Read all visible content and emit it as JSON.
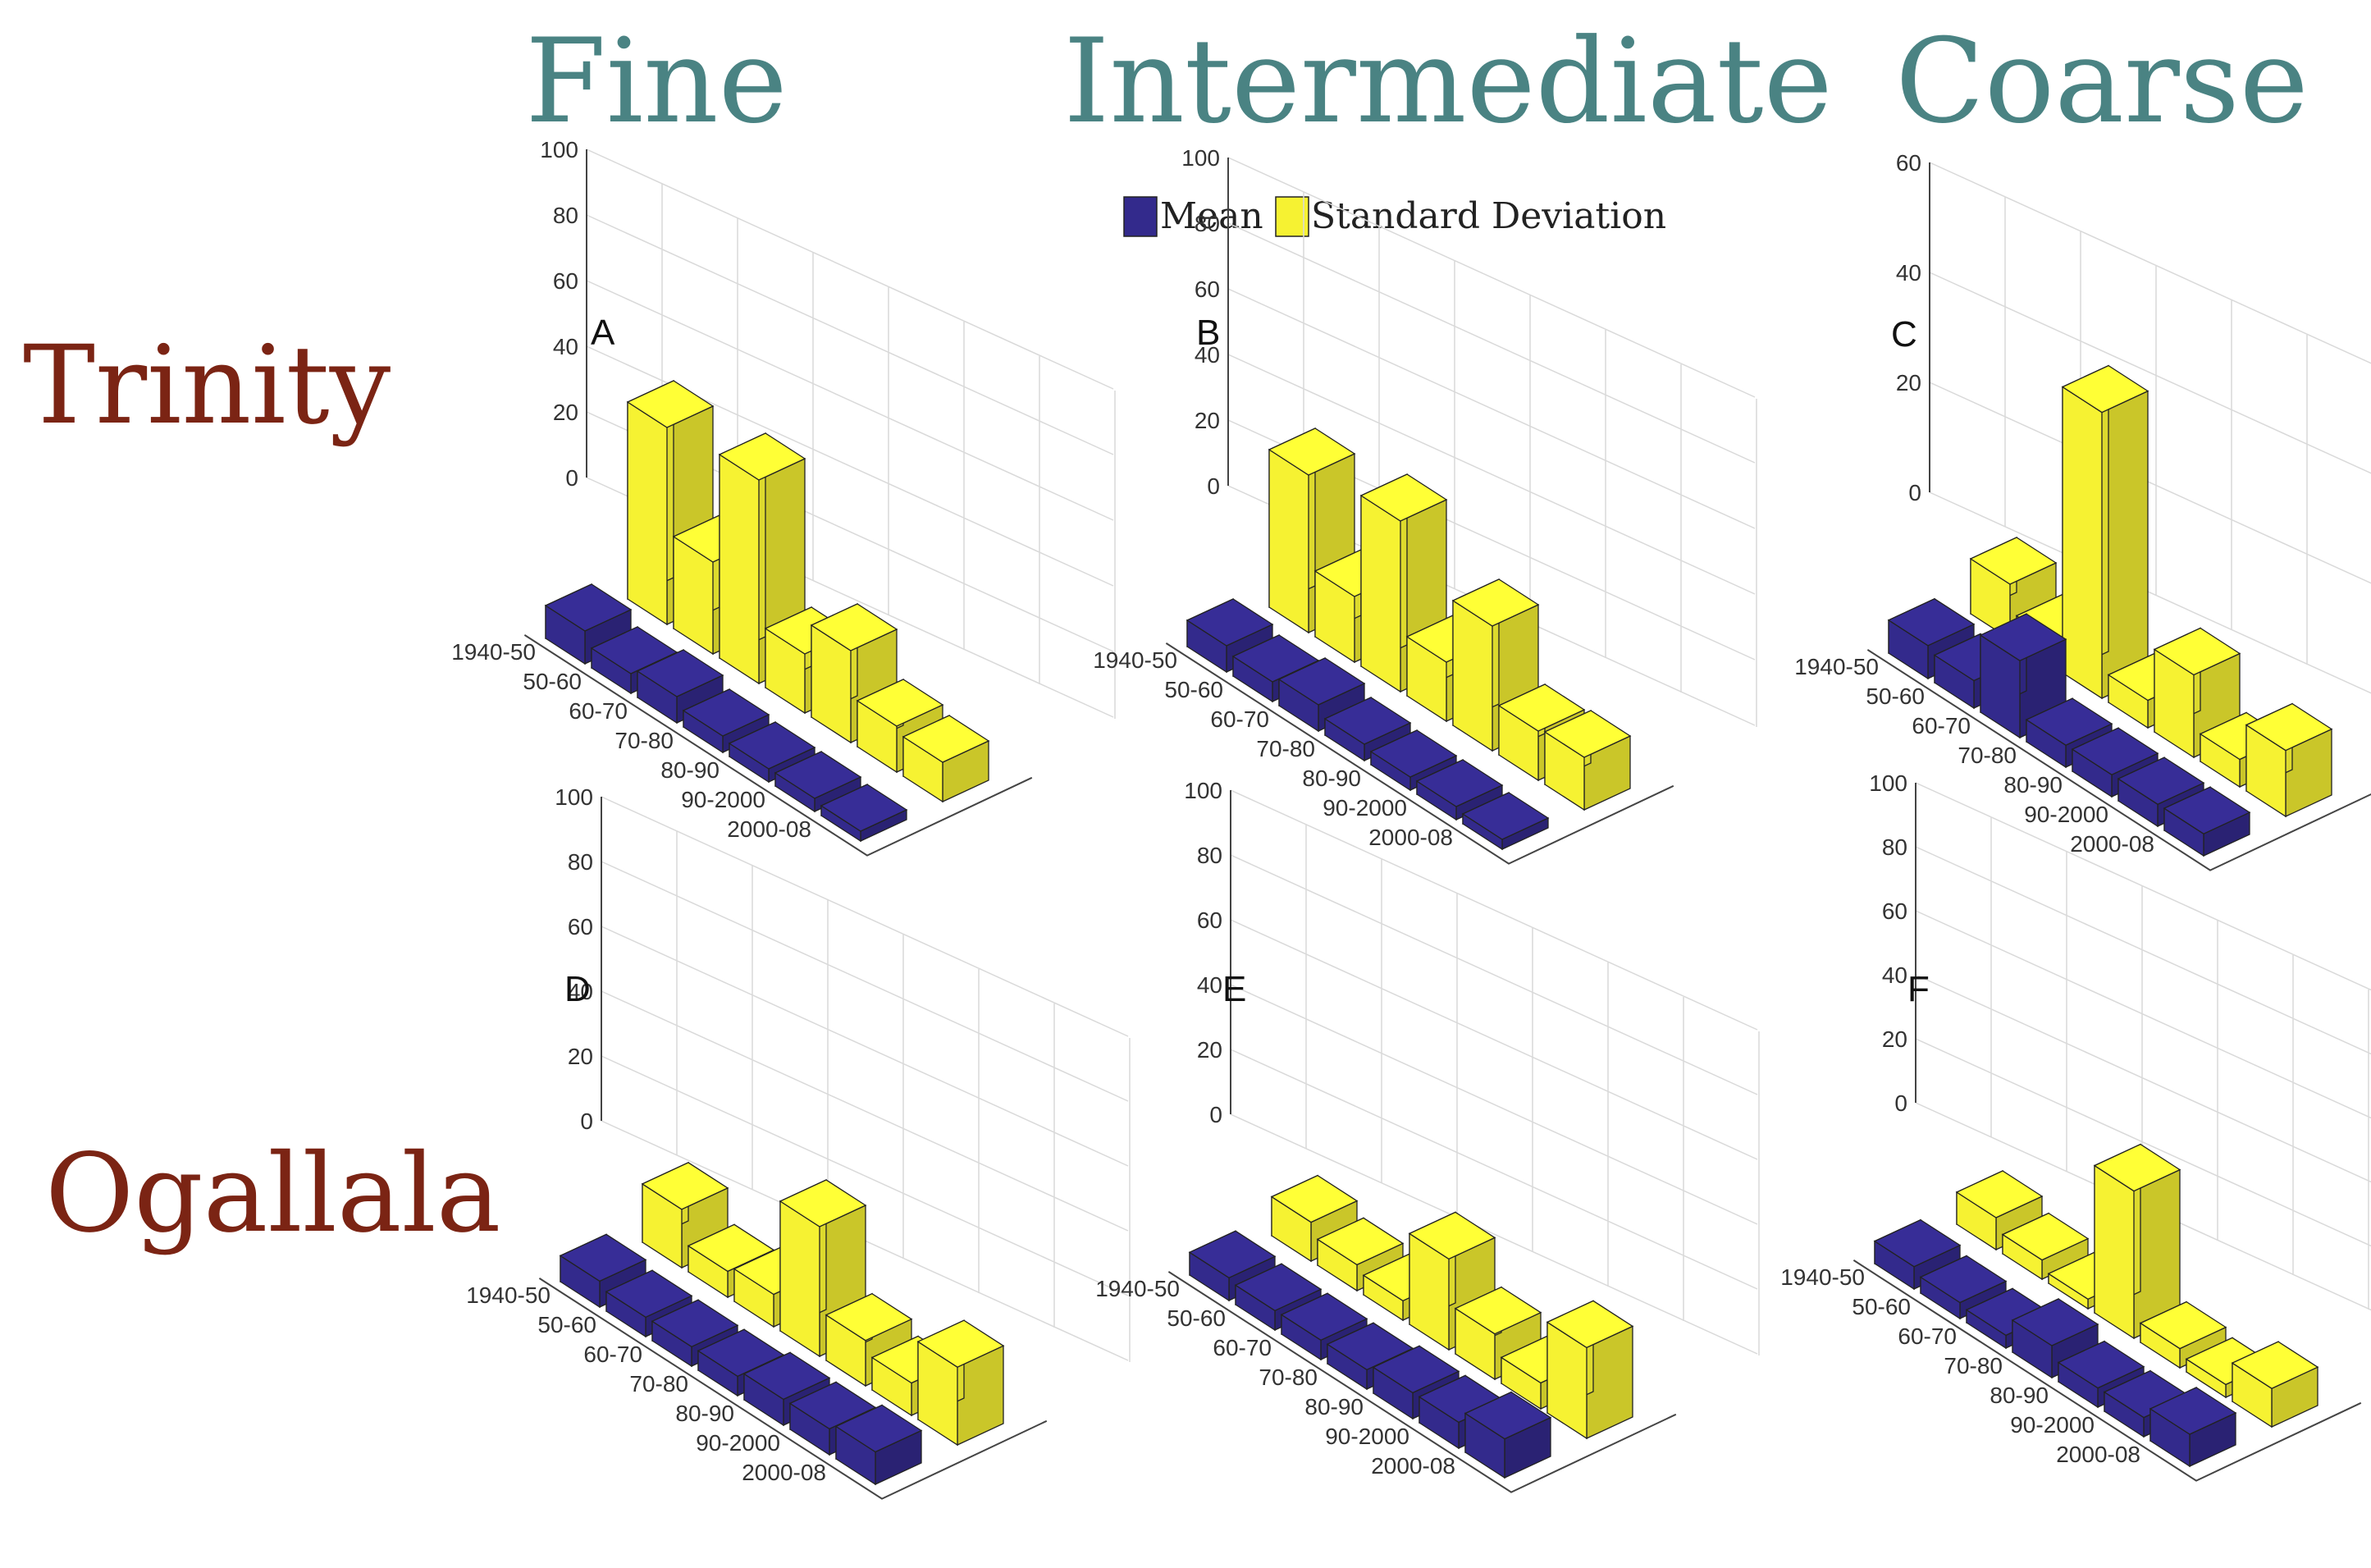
{
  "columns": [
    "Fine",
    "Intermediate",
    "Coarse"
  ],
  "rows": [
    "Trinity",
    "Ogallala"
  ],
  "legend": {
    "mean_label": "Mean",
    "sd_label": "Standard Deviation"
  },
  "colors": {
    "mean": "#332a8c",
    "sd": "#f6f232",
    "column_title": "#4a8383",
    "row_title": "#7b2414"
  },
  "chart_data": [
    {
      "type": "bar3d",
      "panel": "A",
      "categories": [
        "1940-50",
        "50-60",
        "60-70",
        "70-80",
        "80-90",
        "90-2000",
        "2000-08"
      ],
      "series": [
        {
          "name": "Mean",
          "values": [
            10,
            6,
            8,
            5,
            4,
            4,
            3
          ]
        },
        {
          "name": "Standard Deviation",
          "values": [
            60,
            28,
            62,
            18,
            28,
            14,
            12
          ]
        }
      ],
      "ylim": [
        0,
        100
      ],
      "yticks": [
        0,
        20,
        40,
        60,
        80,
        100
      ]
    },
    {
      "type": "bar3d",
      "panel": "B",
      "categories": [
        "1940-50",
        "50-60",
        "60-70",
        "70-80",
        "80-90",
        "90-2000",
        "2000-08"
      ],
      "series": [
        {
          "name": "Mean",
          "values": [
            8,
            6,
            8,
            5,
            4,
            4,
            3
          ]
        },
        {
          "name": "Standard Deviation",
          "values": [
            48,
            20,
            52,
            18,
            38,
            15,
            16
          ]
        }
      ],
      "ylim": [
        0,
        100
      ],
      "yticks": [
        0,
        20,
        40,
        60,
        80,
        100
      ]
    },
    {
      "type": "bar3d",
      "panel": "C",
      "categories": [
        "1940-50",
        "50-60",
        "60-70",
        "70-80",
        "80-90",
        "90-2000",
        "2000-08"
      ],
      "series": [
        {
          "name": "Mean",
          "values": [
            6,
            5,
            14,
            4,
            4,
            4,
            4
          ]
        },
        {
          "name": "Standard Deviation",
          "values": [
            10,
            5,
            52,
            5,
            15,
            5,
            12
          ]
        }
      ],
      "ylim": [
        0,
        60
      ],
      "yticks": [
        0,
        20,
        40,
        60
      ]
    },
    {
      "type": "bar3d",
      "panel": "D",
      "categories": [
        "1940-50",
        "50-60",
        "60-70",
        "70-80",
        "80-90",
        "90-2000",
        "2000-08"
      ],
      "series": [
        {
          "name": "Mean",
          "values": [
            8,
            6,
            6,
            6,
            8,
            8,
            10
          ]
        },
        {
          "name": "Standard Deviation",
          "values": [
            18,
            8,
            10,
            40,
            14,
            10,
            24
          ]
        }
      ],
      "ylim": [
        0,
        100
      ],
      "yticks": [
        0,
        20,
        40,
        60,
        80,
        100
      ]
    },
    {
      "type": "bar3d",
      "panel": "E",
      "categories": [
        "1940-50",
        "50-60",
        "60-70",
        "70-80",
        "80-90",
        "90-2000",
        "2000-08"
      ],
      "series": [
        {
          "name": "Mean",
          "values": [
            7,
            6,
            6,
            6,
            8,
            8,
            12
          ]
        },
        {
          "name": "Standard Deviation",
          "values": [
            12,
            8,
            6,
            28,
            14,
            8,
            28
          ]
        }
      ],
      "ylim": [
        0,
        100
      ],
      "yticks": [
        0,
        20,
        40,
        60,
        80,
        100
      ]
    },
    {
      "type": "bar3d",
      "panel": "F",
      "categories": [
        "1940-50",
        "50-60",
        "60-70",
        "70-80",
        "80-90",
        "90-2000",
        "2000-08"
      ],
      "series": [
        {
          "name": "Mean",
          "values": [
            7,
            5,
            4,
            10,
            6,
            6,
            10
          ]
        },
        {
          "name": "Standard Deviation",
          "values": [
            10,
            6,
            3,
            46,
            6,
            4,
            12
          ]
        }
      ],
      "ylim": [
        0,
        100
      ],
      "yticks": [
        0,
        20,
        40,
        60,
        80,
        100
      ]
    }
  ]
}
